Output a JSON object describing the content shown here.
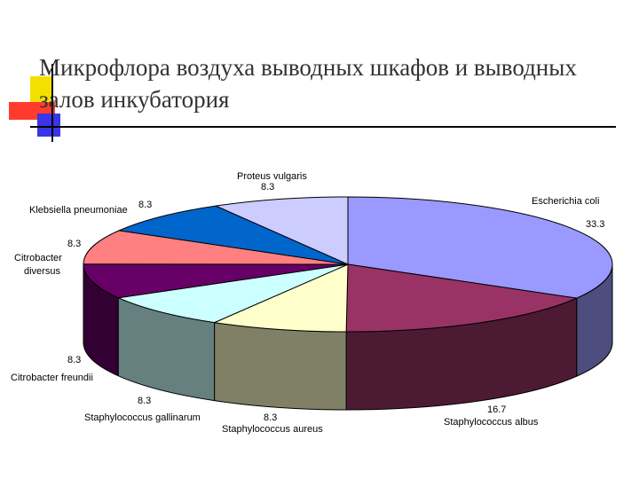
{
  "slide": {
    "title": "Микрофлора воздуха выводных шкафов и выводных залов инкубатория"
  },
  "chart_data": {
    "type": "pie",
    "three_d": true,
    "title": "",
    "series": [
      {
        "label": "Escherichia coli",
        "value": 33.3,
        "value_text": "33.3",
        "color": "#9999ff"
      },
      {
        "label": "Staphylococcus albus",
        "value": 16.7,
        "value_text": "16.7",
        "color": "#993366"
      },
      {
        "label": "Staphylococcus aureus",
        "value": 8.3,
        "value_text": "8.3",
        "color": "#ffffcc"
      },
      {
        "label": "Staphylococcus gallinarum",
        "value": 8.3,
        "value_text": "8.3",
        "color": "#ccffff"
      },
      {
        "label": "Citrobacter freundii",
        "value": 8.3,
        "value_text": "8.3",
        "color": "#660066"
      },
      {
        "label": "Citrobacter diversus",
        "value": 8.3,
        "value_text": "8.3",
        "color": "#ff8080"
      },
      {
        "label": "Klebsiella pneumoniae",
        "value": 8.3,
        "value_text": "8.3",
        "color": "#0066cc"
      },
      {
        "label": "Proteus vulgaris",
        "value": 8.3,
        "value_text": "8.3",
        "color": "#ccccff"
      }
    ]
  }
}
